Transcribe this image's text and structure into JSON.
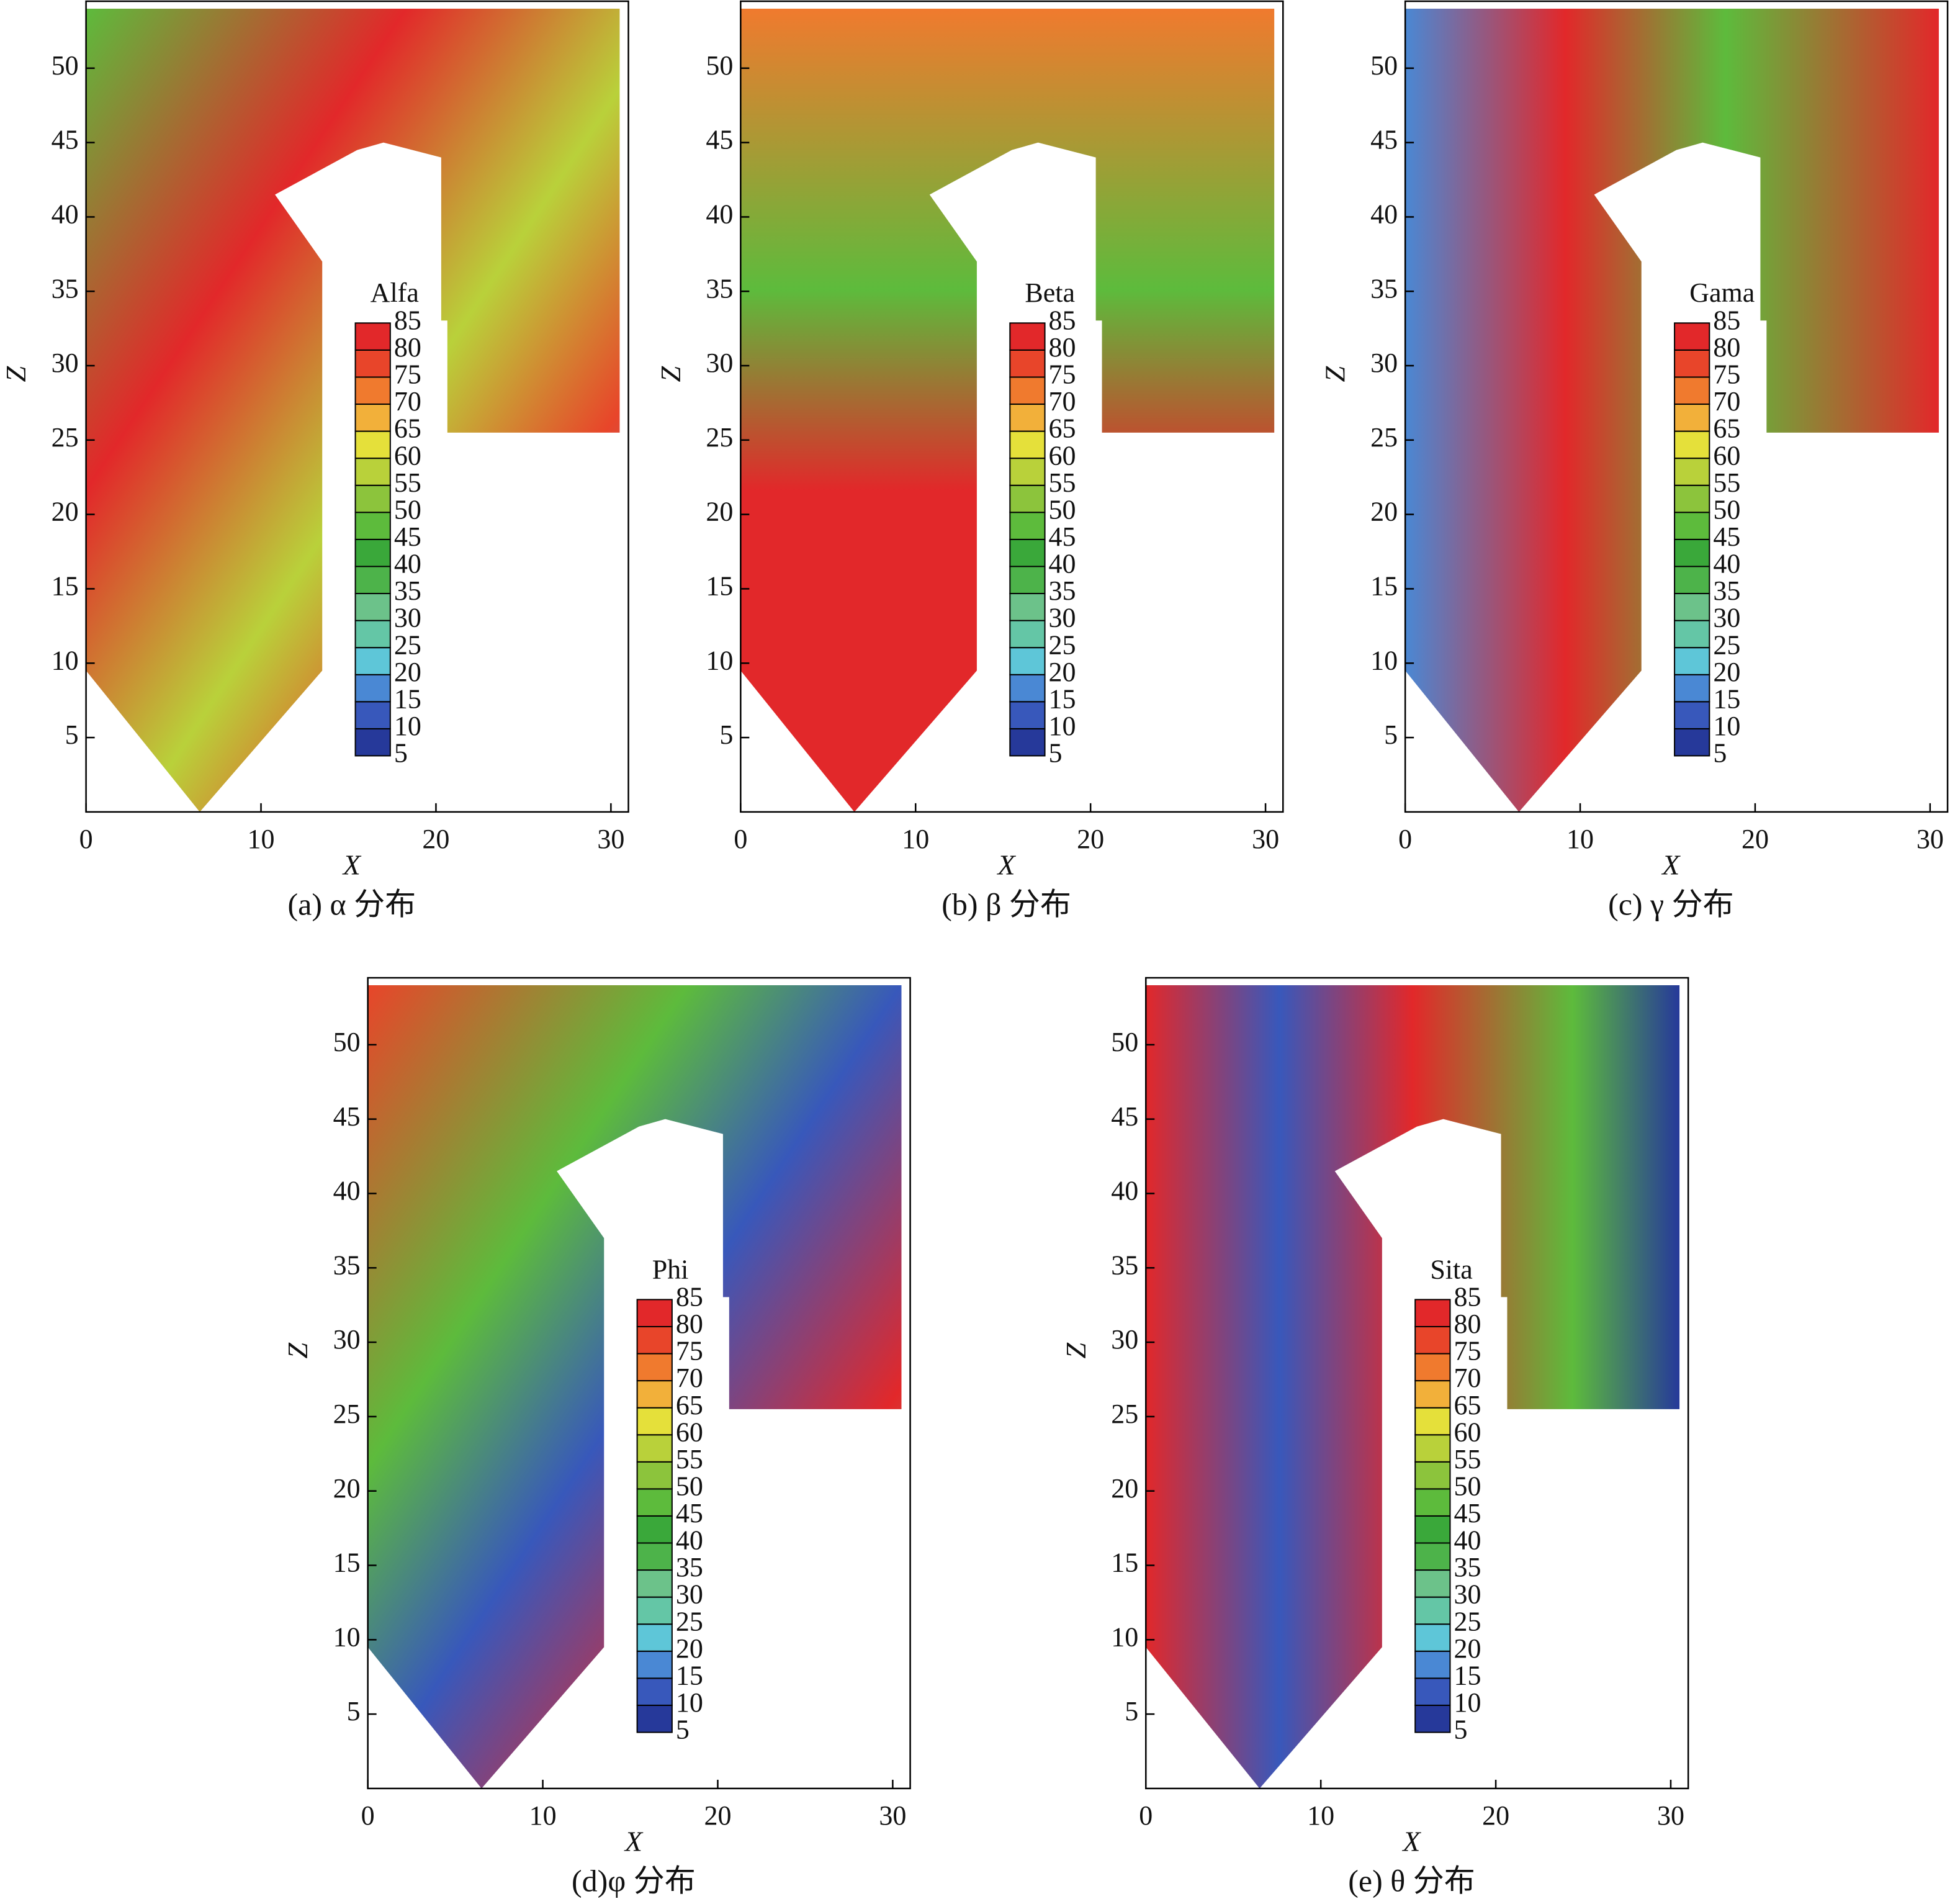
{
  "chart_data": [
    {
      "type": "contour",
      "title": "(a) α 分布",
      "x_label": "X",
      "y_label": "Z",
      "xlim": [
        0,
        31
      ],
      "ylim": [
        0,
        54.5
      ],
      "xticks": [
        0,
        10,
        20,
        30
      ],
      "yticks": [
        5,
        10,
        15,
        20,
        25,
        30,
        35,
        40,
        45,
        50
      ],
      "colorbar_title": "Alfa",
      "colorbar_levels": [
        5,
        10,
        15,
        20,
        25,
        30,
        35,
        40,
        45,
        50,
        55,
        60,
        65,
        70,
        75,
        80,
        85
      ],
      "colorbar_colors": [
        "#26399a",
        "#3858bb",
        "#4a88d4",
        "#5ec6d8",
        "#64c6a6",
        "#6cc28a",
        "#4db34a",
        "#3aa83a",
        "#5dbb3c",
        "#8cc43c",
        "#b9d13a",
        "#e5e03a",
        "#f2b03a",
        "#f07a2e",
        "#e8452a",
        "#e2282a"
      ]
    },
    {
      "type": "contour",
      "title": "(b) β 分布",
      "x_label": "X",
      "y_label": "Z",
      "xlim": [
        0,
        31
      ],
      "ylim": [
        0,
        54.5
      ],
      "xticks": [
        0,
        10,
        20,
        30
      ],
      "yticks": [
        5,
        10,
        15,
        20,
        25,
        30,
        35,
        40,
        45,
        50
      ],
      "colorbar_title": "Beta",
      "colorbar_levels": [
        5,
        10,
        15,
        20,
        25,
        30,
        35,
        40,
        45,
        50,
        55,
        60,
        65,
        70,
        75,
        80,
        85
      ],
      "colorbar_colors": [
        "#26399a",
        "#3858bb",
        "#4a88d4",
        "#5ec6d8",
        "#64c6a6",
        "#6cc28a",
        "#4db34a",
        "#3aa83a",
        "#5dbb3c",
        "#8cc43c",
        "#b9d13a",
        "#e5e03a",
        "#f2b03a",
        "#f07a2e",
        "#e8452a",
        "#e2282a"
      ]
    },
    {
      "type": "contour",
      "title": "(c) γ 分布",
      "x_label": "X",
      "y_label": "Z",
      "xlim": [
        0,
        31
      ],
      "ylim": [
        0,
        54.5
      ],
      "xticks": [
        0,
        10,
        20,
        30
      ],
      "yticks": [
        5,
        10,
        15,
        20,
        25,
        30,
        35,
        40,
        45,
        50
      ],
      "colorbar_title": "Gama",
      "colorbar_levels": [
        5,
        10,
        15,
        20,
        25,
        30,
        35,
        40,
        45,
        50,
        55,
        60,
        65,
        70,
        75,
        80,
        85
      ],
      "colorbar_colors": [
        "#26399a",
        "#3858bb",
        "#4a88d4",
        "#5ec6d8",
        "#64c6a6",
        "#6cc28a",
        "#4db34a",
        "#3aa83a",
        "#5dbb3c",
        "#8cc43c",
        "#b9d13a",
        "#e5e03a",
        "#f2b03a",
        "#f07a2e",
        "#e8452a",
        "#e2282a"
      ]
    },
    {
      "type": "contour",
      "title": "(d)φ 分布",
      "x_label": "X",
      "y_label": "Z",
      "xlim": [
        0,
        31
      ],
      "ylim": [
        0,
        54.5
      ],
      "xticks": [
        0,
        10,
        20,
        30
      ],
      "yticks": [
        5,
        10,
        15,
        20,
        25,
        30,
        35,
        40,
        45,
        50
      ],
      "colorbar_title": "Phi",
      "colorbar_levels": [
        5,
        10,
        15,
        20,
        25,
        30,
        35,
        40,
        45,
        50,
        55,
        60,
        65,
        70,
        75,
        80,
        85
      ],
      "colorbar_colors": [
        "#26399a",
        "#3858bb",
        "#4a88d4",
        "#5ec6d8",
        "#64c6a6",
        "#6cc28a",
        "#4db34a",
        "#3aa83a",
        "#5dbb3c",
        "#8cc43c",
        "#b9d13a",
        "#e5e03a",
        "#f2b03a",
        "#f07a2e",
        "#e8452a",
        "#e2282a"
      ]
    },
    {
      "type": "contour",
      "title": "(e) θ 分布",
      "x_label": "X",
      "y_label": "Z",
      "xlim": [
        0,
        31
      ],
      "ylim": [
        0,
        54.5
      ],
      "xticks": [
        0,
        10,
        20,
        30
      ],
      "yticks": [
        5,
        10,
        15,
        20,
        25,
        30,
        35,
        40,
        45,
        50
      ],
      "colorbar_title": "Sita",
      "colorbar_levels": [
        5,
        10,
        15,
        20,
        25,
        30,
        35,
        40,
        45,
        50,
        55,
        60,
        65,
        70,
        75,
        80,
        85
      ],
      "colorbar_colors": [
        "#26399a",
        "#3858bb",
        "#4a88d4",
        "#5ec6d8",
        "#64c6a6",
        "#6cc28a",
        "#4db34a",
        "#3aa83a",
        "#5dbb3c",
        "#8cc43c",
        "#b9d13a",
        "#e5e03a",
        "#f2b03a",
        "#f07a2e",
        "#e8452a",
        "#e2282a"
      ]
    }
  ]
}
